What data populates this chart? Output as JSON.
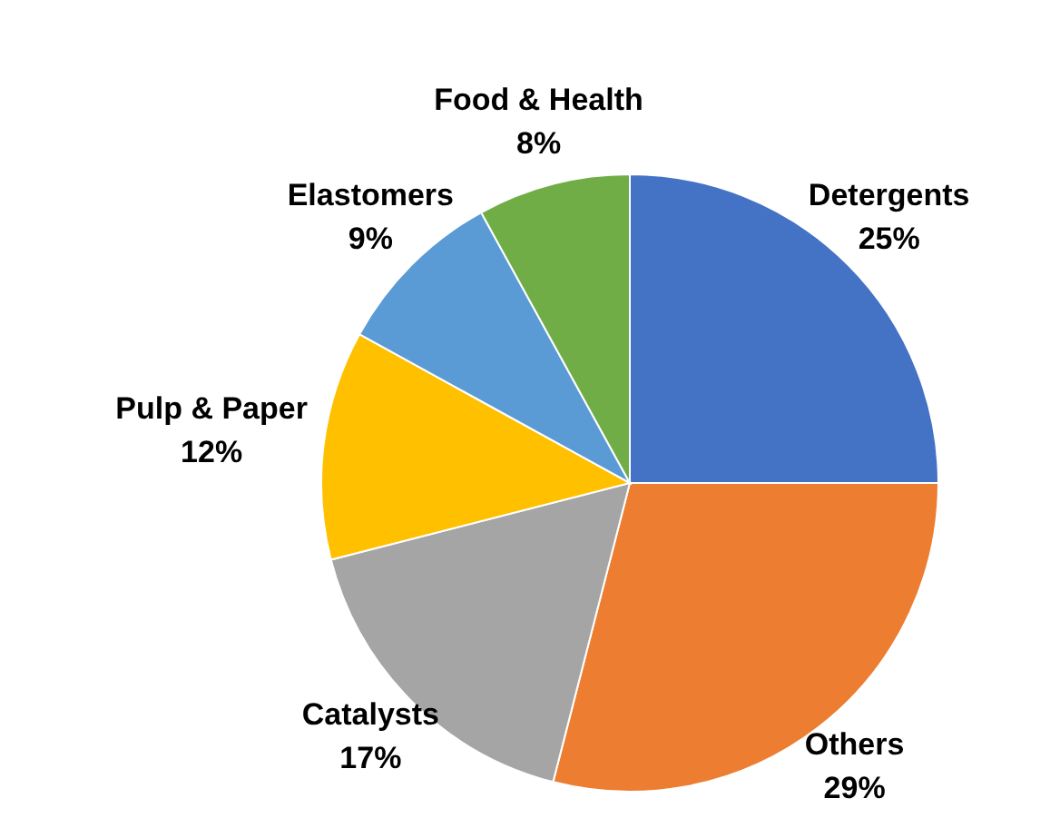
{
  "chart_data": {
    "type": "pie",
    "categories": [
      "Detergents",
      "Others",
      "Catalysts",
      "Pulp & Paper",
      "Elastomers",
      "Food & Health"
    ],
    "values": [
      25,
      29,
      17,
      12,
      9,
      8
    ],
    "colors": [
      "#4472c4",
      "#ed7d31",
      "#a5a5a5",
      "#ffc000",
      "#5b9bd5",
      "#70ad47"
    ],
    "value_labels": [
      "25%",
      "29%",
      "17%",
      "12%",
      "9%",
      "8%"
    ]
  }
}
